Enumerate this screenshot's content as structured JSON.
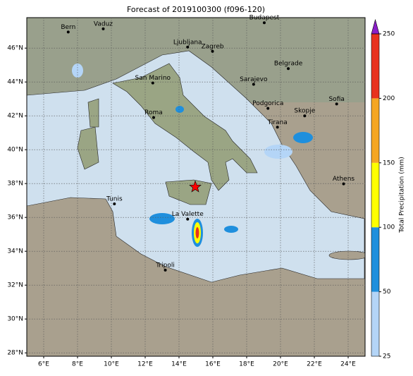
{
  "title": "Forecast of 2019100300 (f096-120)",
  "map": {
    "xlim": [
      5,
      25
    ],
    "ylim": [
      27.8,
      47.8
    ],
    "lon_ticks": [
      {
        "value": 6,
        "label": "6°E"
      },
      {
        "value": 8,
        "label": "8°E"
      },
      {
        "value": 10,
        "label": "10°E"
      },
      {
        "value": 12,
        "label": "12°E"
      },
      {
        "value": 14,
        "label": "14°E"
      },
      {
        "value": 16,
        "label": "16°E"
      },
      {
        "value": 18,
        "label": "18°E"
      },
      {
        "value": 20,
        "label": "20°E"
      },
      {
        "value": 22,
        "label": "22°E"
      },
      {
        "value": 24,
        "label": "24°E"
      }
    ],
    "lat_ticks": [
      {
        "value": 28,
        "label": "28°N"
      },
      {
        "value": 30,
        "label": "30°N"
      },
      {
        "value": 32,
        "label": "32°N"
      },
      {
        "value": 34,
        "label": "34°N"
      },
      {
        "value": 36,
        "label": "36°N"
      },
      {
        "value": 38,
        "label": "38°N"
      },
      {
        "value": 40,
        "label": "40°N"
      },
      {
        "value": 42,
        "label": "42°N"
      },
      {
        "value": 44,
        "label": "44°N"
      },
      {
        "value": 46,
        "label": "46°N"
      }
    ],
    "cities": [
      {
        "name": "Bern",
        "lon": 7.45,
        "lat": 46.95
      },
      {
        "name": "Vaduz",
        "lon": 9.52,
        "lat": 47.14
      },
      {
        "name": "Budapest",
        "lon": 19.04,
        "lat": 47.5
      },
      {
        "name": "Ljubljana",
        "lon": 14.51,
        "lat": 46.06
      },
      {
        "name": "Zagreb",
        "lon": 15.98,
        "lat": 45.81
      },
      {
        "name": "Belgrade",
        "lon": 20.46,
        "lat": 44.79
      },
      {
        "name": "San Marino",
        "lon": 12.45,
        "lat": 43.94
      },
      {
        "name": "Sarajevo",
        "lon": 18.41,
        "lat": 43.86
      },
      {
        "name": "Sofia",
        "lon": 23.32,
        "lat": 42.7
      },
      {
        "name": "Podgorica",
        "lon": 19.26,
        "lat": 42.44
      },
      {
        "name": "Skopje",
        "lon": 21.43,
        "lat": 42.0
      },
      {
        "name": "Roma",
        "lon": 12.5,
        "lat": 41.9
      },
      {
        "name": "Tirana",
        "lon": 19.82,
        "lat": 41.33
      },
      {
        "name": "Athens",
        "lon": 23.73,
        "lat": 37.98
      },
      {
        "name": "Tunis",
        "lon": 10.18,
        "lat": 36.8
      },
      {
        "name": "La Valette",
        "lon": 14.51,
        "lat": 35.9
      },
      {
        "name": "Tripoli",
        "lon": 13.19,
        "lat": 32.89
      }
    ],
    "marker": {
      "lon": 14.96,
      "lat": 37.8,
      "color": "#ff0000"
    }
  },
  "colorbar": {
    "label": "Total Precipitation (mm)",
    "ticks": [
      25,
      50,
      100,
      150,
      200,
      250
    ],
    "colors": [
      "#b4d5f7",
      "#1f8fdd",
      "#ffff00",
      "#f5a623",
      "#e8321e"
    ],
    "extend_color": "#8a1fc8"
  }
}
